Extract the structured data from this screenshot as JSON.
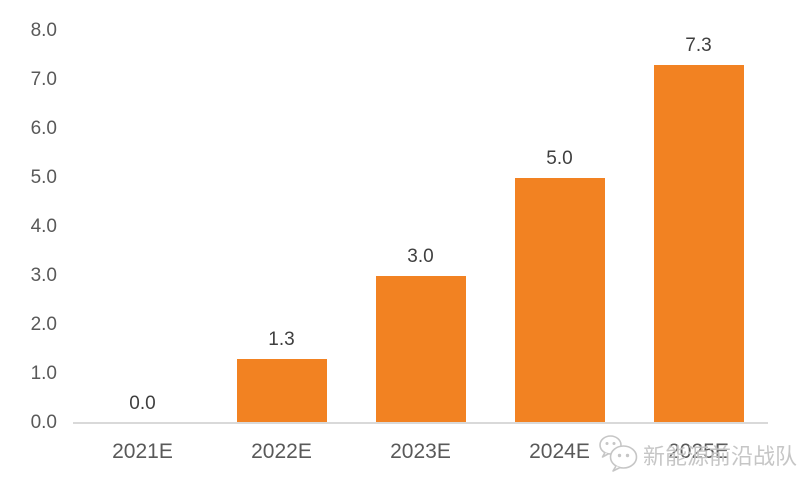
{
  "chart_data": {
    "type": "bar",
    "categories": [
      "2021E",
      "2022E",
      "2023E",
      "2024E",
      "2025E"
    ],
    "values": [
      0.0,
      1.3,
      3.0,
      5.0,
      7.3
    ],
    "data_labels": [
      "0.0",
      "1.3",
      "3.0",
      "5.0",
      "7.3"
    ],
    "y_ticks": [
      "0.0",
      "1.0",
      "2.0",
      "3.0",
      "4.0",
      "5.0",
      "6.0",
      "7.0",
      "8.0"
    ],
    "ylim": [
      0,
      8
    ],
    "title": "",
    "xlabel": "",
    "ylabel": "",
    "grid": false,
    "legend": "none"
  },
  "colors": {
    "bar": "#f28222",
    "axis_line": "#d9d9d9",
    "tick_label": "#595959",
    "data_label": "#3f3f3f",
    "watermark": "#c2c2c2",
    "background": "#ffffff"
  },
  "watermark": {
    "icon": "wechat-icon",
    "text": "新能源前沿战队"
  }
}
